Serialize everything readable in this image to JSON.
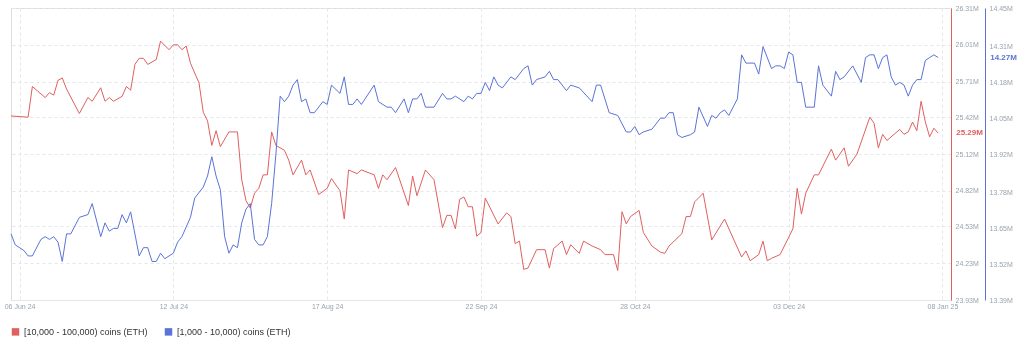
{
  "chart_data": {
    "type": "line",
    "xlim": [
      "2024-06-04",
      "2025-01-10"
    ],
    "xticks": [
      {
        "value": "2024-06-06",
        "label": "06 Jun 24"
      },
      {
        "value": "2024-07-12",
        "label": "12 Jul 24"
      },
      {
        "value": "2024-08-17",
        "label": "17 Aug 24"
      },
      {
        "value": "2024-09-22",
        "label": "22 Sep 24"
      },
      {
        "value": "2024-10-28",
        "label": "28 Oct 24"
      },
      {
        "value": "2024-12-03",
        "label": "03 Dec 24"
      },
      {
        "value": "2025-01-08",
        "label": "08 Jan 25"
      }
    ],
    "ylim": [
      23.93,
      26.31
    ],
    "yticks": [
      {
        "value": 23.93,
        "label": "23.93M"
      },
      {
        "value": 24.23,
        "label": "24.23M"
      },
      {
        "value": 24.53,
        "label": "24.53M"
      },
      {
        "value": 24.82,
        "label": "24.82M"
      },
      {
        "value": 25.12,
        "label": "25.12M"
      },
      {
        "value": 25.42,
        "label": "25.42M"
      },
      {
        "value": 25.71,
        "label": "25.71M"
      },
      {
        "value": 26.01,
        "label": "26.01M"
      },
      {
        "value": 26.31,
        "label": "26.31M"
      }
    ],
    "y2lim": [
      13.39,
      14.45
    ],
    "y2ticks": [
      {
        "value": 13.39,
        "label": "13.39M"
      },
      {
        "value": 13.52,
        "label": "13.52M"
      },
      {
        "value": 13.65,
        "label": "13.65M"
      },
      {
        "value": 13.78,
        "label": "13.78M"
      },
      {
        "value": 13.92,
        "label": "13.92M"
      },
      {
        "value": 14.05,
        "label": "14.05M"
      },
      {
        "value": 14.18,
        "label": "14.18M"
      },
      {
        "value": 14.31,
        "label": "14.31M"
      },
      {
        "value": 14.45,
        "label": "14.45M"
      }
    ],
    "grid": true,
    "legend": "bottom",
    "line_style": "solid",
    "annotations": [
      "25.29M",
      "14.27M"
    ],
    "series": [
      {
        "name": "[10,000 - 100,000) coins (ETH)",
        "color": "#e0605f",
        "axis": "y",
        "x": [
          "2024-06-04",
          "2024-06-08",
          "2024-06-09",
          "2024-06-12",
          "2024-06-13",
          "2024-06-14",
          "2024-06-15",
          "2024-06-16",
          "2024-06-17",
          "2024-06-20",
          "2024-06-22",
          "2024-06-23",
          "2024-06-25",
          "2024-06-26",
          "2024-06-27",
          "2024-06-28",
          "2024-06-30",
          "2024-07-01",
          "2024-07-02",
          "2024-07-03",
          "2024-07-04",
          "2024-07-05",
          "2024-07-06",
          "2024-07-08",
          "2024-07-09",
          "2024-07-11",
          "2024-07-12",
          "2024-07-13",
          "2024-07-14",
          "2024-07-15",
          "2024-07-16",
          "2024-07-18",
          "2024-07-19",
          "2024-07-20",
          "2024-07-21",
          "2024-07-22",
          "2024-07-23",
          "2024-07-25",
          "2024-07-27",
          "2024-07-28",
          "2024-07-29",
          "2024-07-30",
          "2024-07-31",
          "2024-08-01",
          "2024-08-02",
          "2024-08-03",
          "2024-08-04",
          "2024-08-05",
          "2024-08-07",
          "2024-08-08",
          "2024-08-09",
          "2024-08-11",
          "2024-08-12",
          "2024-08-13",
          "2024-08-15",
          "2024-08-17",
          "2024-08-18",
          "2024-08-20",
          "2024-08-21",
          "2024-08-22",
          "2024-08-24",
          "2024-08-25",
          "2024-08-28",
          "2024-08-29",
          "2024-08-30",
          "2024-08-31",
          "2024-09-02",
          "2024-09-05",
          "2024-09-06",
          "2024-09-07",
          "2024-09-09",
          "2024-09-11",
          "2024-09-13",
          "2024-09-14",
          "2024-09-15",
          "2024-09-16",
          "2024-09-17",
          "2024-09-18",
          "2024-09-19",
          "2024-09-20",
          "2024-09-21",
          "2024-09-22",
          "2024-09-23",
          "2024-09-26",
          "2024-09-28",
          "2024-09-29",
          "2024-09-30",
          "2024-10-01",
          "2024-10-02",
          "2024-10-03",
          "2024-10-05",
          "2024-10-07",
          "2024-10-08",
          "2024-10-09",
          "2024-10-11",
          "2024-10-12",
          "2024-10-13",
          "2024-10-15",
          "2024-10-16",
          "2024-10-18",
          "2024-10-20",
          "2024-10-21",
          "2024-10-23",
          "2024-10-24",
          "2024-10-25",
          "2024-10-26",
          "2024-10-27",
          "2024-10-29",
          "2024-10-30",
          "2024-11-01",
          "2024-11-03",
          "2024-11-04",
          "2024-11-05",
          "2024-11-08",
          "2024-11-09",
          "2024-11-10",
          "2024-11-11",
          "2024-11-13",
          "2024-11-15",
          "2024-11-18",
          "2024-11-22",
          "2024-11-23",
          "2024-11-24",
          "2024-11-26",
          "2024-11-27",
          "2024-11-28",
          "2024-11-29",
          "2024-12-01",
          "2024-12-02",
          "2024-12-04",
          "2024-12-05",
          "2024-12-06",
          "2024-12-07",
          "2024-12-09",
          "2024-12-10",
          "2024-12-13",
          "2024-12-14",
          "2024-12-16",
          "2024-12-17",
          "2024-12-19",
          "2024-12-22",
          "2024-12-23",
          "2024-12-24",
          "2024-12-25",
          "2024-12-26",
          "2024-12-29",
          "2024-12-30",
          "2024-12-31",
          "2025-01-01",
          "2025-01-02",
          "2025-01-03",
          "2025-01-04",
          "2025-01-05",
          "2025-01-06",
          "2025-01-07"
        ],
        "values": [
          25.43,
          25.42,
          25.67,
          25.58,
          25.62,
          25.6,
          25.72,
          25.74,
          25.65,
          25.45,
          25.58,
          25.55,
          25.66,
          25.55,
          25.58,
          25.55,
          25.59,
          25.67,
          25.64,
          25.85,
          25.9,
          25.9,
          25.85,
          25.89,
          26.04,
          25.97,
          26.01,
          26.01,
          25.97,
          26.0,
          25.86,
          25.7,
          25.46,
          25.39,
          25.19,
          25.31,
          25.18,
          25.3,
          25.3,
          24.91,
          24.74,
          24.68,
          24.8,
          24.84,
          24.95,
          24.95,
          25.3,
          25.19,
          25.15,
          25.07,
          24.95,
          25.07,
          24.95,
          24.99,
          24.79,
          24.84,
          24.92,
          24.82,
          24.59,
          24.99,
          24.96,
          24.99,
          24.95,
          24.84,
          24.95,
          24.91,
          25.01,
          24.7,
          24.94,
          24.78,
          24.99,
          24.91,
          24.52,
          24.62,
          24.62,
          24.51,
          24.75,
          24.77,
          24.69,
          24.69,
          24.45,
          24.48,
          24.76,
          24.55,
          24.64,
          24.61,
          24.39,
          24.41,
          24.18,
          24.19,
          24.34,
          24.34,
          24.19,
          24.35,
          24.41,
          24.3,
          24.38,
          24.31,
          24.41,
          24.37,
          24.34,
          24.3,
          24.3,
          24.17,
          24.65,
          24.55,
          24.61,
          24.66,
          24.48,
          24.37,
          24.32,
          24.31,
          24.37,
          24.47,
          24.61,
          24.61,
          24.73,
          24.8,
          24.42,
          24.59,
          24.28,
          24.33,
          24.25,
          24.3,
          24.41,
          24.25,
          24.27,
          24.3,
          24.37,
          24.51,
          24.84,
          24.63,
          24.8,
          24.95,
          24.95,
          25.16,
          25.07,
          25.17,
          25.02,
          25.12,
          25.42,
          25.37,
          25.17,
          25.28,
          25.23,
          25.32,
          25.28,
          25.3,
          25.38,
          25.31,
          25.55,
          25.38,
          25.26,
          25.33,
          25.29
        ]
      },
      {
        "name": "[1,000 - 10,000) coins (ETH)",
        "color": "#5b73d6",
        "axis": "y2",
        "x": [
          "2024-06-04",
          "2024-06-05",
          "2024-06-07",
          "2024-06-08",
          "2024-06-09",
          "2024-06-11",
          "2024-06-12",
          "2024-06-13",
          "2024-06-14",
          "2024-06-15",
          "2024-06-16",
          "2024-06-17",
          "2024-06-18",
          "2024-06-20",
          "2024-06-22",
          "2024-06-23",
          "2024-06-25",
          "2024-06-26",
          "2024-06-27",
          "2024-06-28",
          "2024-06-29",
          "2024-06-30",
          "2024-07-01",
          "2024-07-02",
          "2024-07-04",
          "2024-07-05",
          "2024-07-06",
          "2024-07-07",
          "2024-07-08",
          "2024-07-09",
          "2024-07-10",
          "2024-07-12",
          "2024-07-13",
          "2024-07-14",
          "2024-07-16",
          "2024-07-17",
          "2024-07-19",
          "2024-07-20",
          "2024-07-21",
          "2024-07-22",
          "2024-07-23",
          "2024-07-24",
          "2024-07-25",
          "2024-07-26",
          "2024-07-27",
          "2024-07-28",
          "2024-07-29",
          "2024-07-30",
          "2024-07-31",
          "2024-08-01",
          "2024-08-02",
          "2024-08-03",
          "2024-08-04",
          "2024-08-05",
          "2024-08-06",
          "2024-08-07",
          "2024-08-08",
          "2024-08-09",
          "2024-08-10",
          "2024-08-11",
          "2024-08-12",
          "2024-08-13",
          "2024-08-14",
          "2024-08-16",
          "2024-08-17",
          "2024-08-18",
          "2024-08-20",
          "2024-08-21",
          "2024-08-22",
          "2024-08-23",
          "2024-08-24",
          "2024-08-25",
          "2024-08-28",
          "2024-08-29",
          "2024-08-31",
          "2024-09-01",
          "2024-09-02",
          "2024-09-04",
          "2024-09-05",
          "2024-09-06",
          "2024-09-07",
          "2024-09-08",
          "2024-09-09",
          "2024-09-11",
          "2024-09-13",
          "2024-09-14",
          "2024-09-15",
          "2024-09-16",
          "2024-09-18",
          "2024-09-19",
          "2024-09-20",
          "2024-09-21",
          "2024-09-22",
          "2024-09-23",
          "2024-09-24",
          "2024-09-25",
          "2024-09-26",
          "2024-09-27",
          "2024-09-29",
          "2024-09-30",
          "2024-10-02",
          "2024-10-03",
          "2024-10-04",
          "2024-10-05",
          "2024-10-07",
          "2024-10-08",
          "2024-10-09",
          "2024-10-10",
          "2024-10-12",
          "2024-10-13",
          "2024-10-15",
          "2024-10-18",
          "2024-10-19",
          "2024-10-20",
          "2024-10-22",
          "2024-10-24",
          "2024-10-26",
          "2024-10-27",
          "2024-10-28",
          "2024-10-29",
          "2024-10-30",
          "2024-11-01",
          "2024-11-03",
          "2024-11-04",
          "2024-11-05",
          "2024-11-06",
          "2024-11-07",
          "2024-11-08",
          "2024-11-10",
          "2024-11-11",
          "2024-11-12",
          "2024-11-14",
          "2024-11-15",
          "2024-11-16",
          "2024-11-17",
          "2024-11-18",
          "2024-11-19",
          "2024-11-21",
          "2024-11-22",
          "2024-11-23",
          "2024-11-25",
          "2024-11-26",
          "2024-11-27",
          "2024-11-29",
          "2024-11-30",
          "2024-12-01",
          "2024-12-02",
          "2024-12-03",
          "2024-12-04",
          "2024-12-05",
          "2024-12-06",
          "2024-12-07",
          "2024-12-08",
          "2024-12-09",
          "2024-12-10",
          "2024-12-11",
          "2024-12-13",
          "2024-12-14",
          "2024-12-15",
          "2024-12-16",
          "2024-12-18",
          "2024-12-20",
          "2024-12-21",
          "2024-12-22",
          "2024-12-23",
          "2024-12-24",
          "2024-12-25",
          "2024-12-26",
          "2024-12-27",
          "2024-12-28",
          "2024-12-29",
          "2024-12-30",
          "2024-12-31",
          "2025-01-01",
          "2025-01-02",
          "2025-01-03",
          "2025-01-04",
          "2025-01-05",
          "2025-01-06",
          "2025-01-07"
        ],
        "values": [
          13.63,
          13.59,
          13.57,
          13.55,
          13.55,
          13.61,
          13.62,
          13.61,
          13.62,
          13.6,
          13.53,
          13.63,
          13.63,
          13.69,
          13.7,
          13.74,
          13.62,
          13.67,
          13.64,
          13.65,
          13.65,
          13.7,
          13.67,
          13.71,
          13.55,
          13.58,
          13.58,
          13.53,
          13.53,
          13.56,
          13.54,
          13.56,
          13.6,
          13.62,
          13.69,
          13.76,
          13.8,
          13.84,
          13.91,
          13.84,
          13.79,
          13.62,
          13.56,
          13.59,
          13.58,
          13.67,
          13.72,
          13.74,
          13.61,
          13.59,
          13.59,
          13.62,
          13.74,
          13.92,
          14.13,
          14.11,
          14.13,
          14.17,
          14.19,
          14.11,
          14.12,
          14.07,
          14.07,
          14.11,
          14.1,
          14.17,
          14.14,
          14.2,
          14.1,
          14.1,
          14.12,
          14.1,
          14.17,
          14.11,
          14.09,
          14.09,
          14.07,
          14.12,
          14.07,
          14.12,
          14.12,
          14.14,
          14.09,
          14.09,
          14.14,
          14.12,
          14.12,
          14.13,
          14.11,
          14.13,
          14.12,
          14.14,
          14.14,
          14.18,
          14.15,
          14.2,
          14.17,
          14.16,
          14.2,
          14.19,
          14.23,
          14.24,
          14.17,
          14.19,
          14.2,
          14.22,
          14.19,
          14.19,
          14.15,
          14.17,
          14.16,
          14.11,
          14.17,
          14.17,
          14.07,
          14.06,
          14.0,
          14.0,
          14.02,
          13.99,
          14.0,
          14.01,
          14.05,
          14.05,
          14.07,
          14.07,
          13.99,
          13.98,
          13.99,
          14.0,
          14.09,
          14.02,
          14.06,
          14.05,
          14.07,
          14.08,
          14.06,
          14.12,
          14.28,
          14.25,
          14.25,
          14.21,
          14.31,
          14.23,
          14.24,
          14.24,
          14.23,
          14.29,
          14.28,
          14.18,
          14.18,
          14.09,
          14.09,
          14.09,
          14.24,
          14.17,
          14.13,
          14.22,
          14.19,
          14.2,
          14.24,
          14.18,
          14.27,
          14.28,
          14.28,
          14.23,
          14.27,
          14.28,
          14.2,
          14.17,
          14.18,
          14.17,
          14.13,
          14.17,
          14.19,
          14.19,
          14.26,
          14.27,
          14.28,
          14.27
        ]
      }
    ]
  }
}
